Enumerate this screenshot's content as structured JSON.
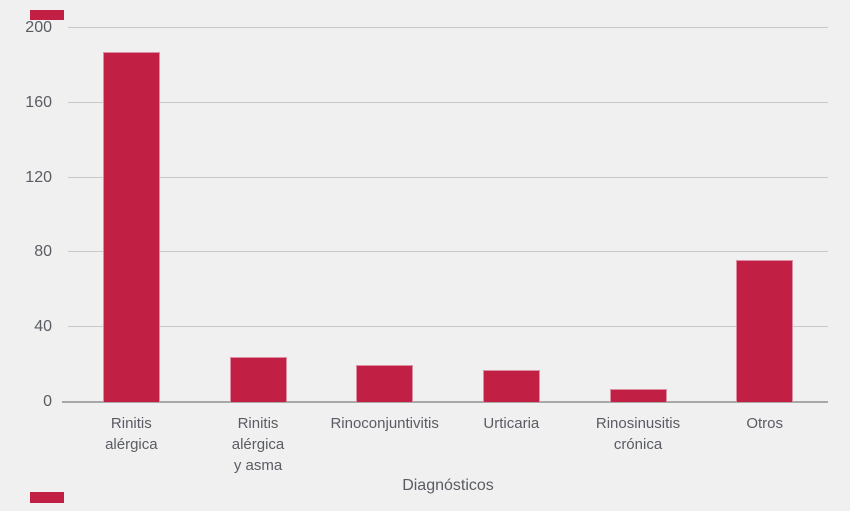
{
  "chart_data": {
    "type": "bar",
    "title": "",
    "categories": [
      "Rinitis\nalérgica",
      "Rinitis\nalérgica\ny asma",
      "Rinoconjuntivitis",
      "Urticaria",
      "Rinosinusitis\ncrónica",
      "Otros"
    ],
    "values": [
      187,
      24,
      20,
      17,
      7,
      76
    ],
    "xlabel": "Diagnósticos",
    "ylabel": "",
    "ylim": [
      0,
      200
    ],
    "yticks": [
      0,
      40,
      80,
      120,
      160,
      200
    ],
    "grid": true,
    "legend": false
  },
  "colors": {
    "background": "#f0f0f0",
    "bar_fill": "#c21f44",
    "bar_border": "#dc8fa2",
    "gridline": "#c9c9c9",
    "axis": "#a8a8a8",
    "text": "#5a5c63",
    "corner_accent": "#c21f44"
  }
}
